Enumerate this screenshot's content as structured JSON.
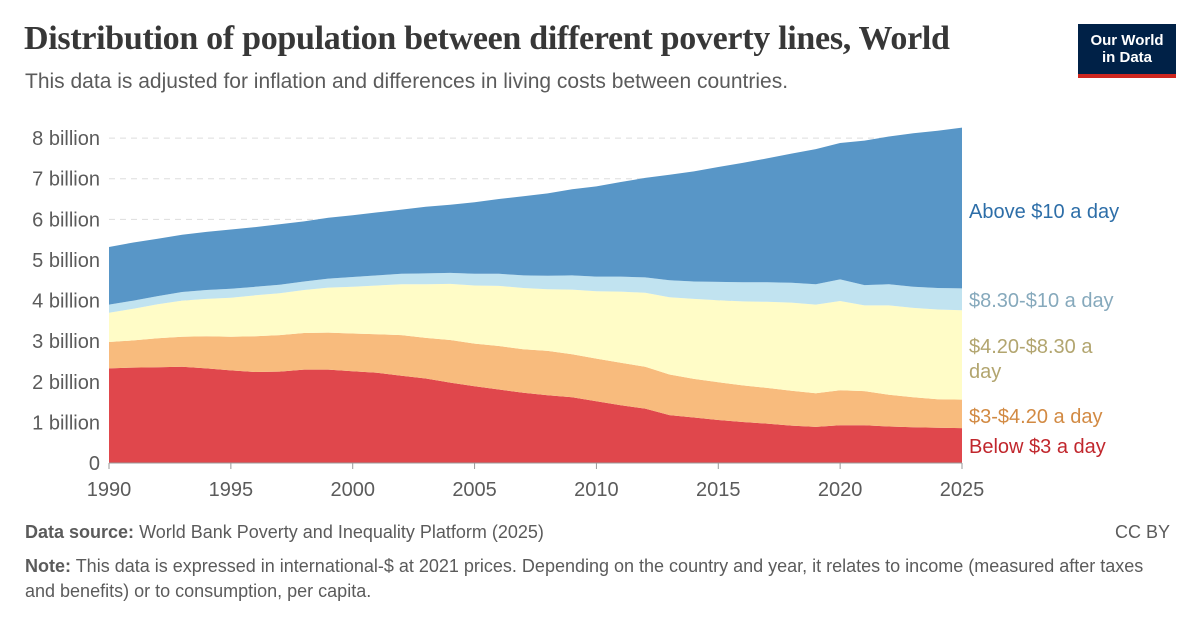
{
  "header": {
    "title": "Distribution of population between different poverty lines, World",
    "subtitle": "This data is adjusted for inflation and differences in living costs between countries."
  },
  "logo": {
    "line1": "Our World",
    "line2": "in Data"
  },
  "footer": {
    "source_label": "Data source:",
    "source_text": "World Bank Poverty and Inequality Platform (2025)",
    "license": "CC BY",
    "note_label": "Note:",
    "note_text": "This data is expressed in international-$ at 2021 prices. Depending on the country and year, it relates to income (measured after taxes and benefits) or to consumption, per capita."
  },
  "chart_data": {
    "type": "area",
    "stacked": true,
    "x": [
      1990,
      1991,
      1992,
      1993,
      1994,
      1995,
      1996,
      1997,
      1998,
      1999,
      2000,
      2001,
      2002,
      2003,
      2004,
      2005,
      2006,
      2007,
      2008,
      2009,
      2010,
      2011,
      2012,
      2013,
      2014,
      2015,
      2016,
      2017,
      2018,
      2019,
      2020,
      2021,
      2022,
      2023,
      2024,
      2025
    ],
    "xlim": [
      1990,
      2025
    ],
    "x_ticks": [
      "1990",
      "1995",
      "2000",
      "2005",
      "2010",
      "2015",
      "2020",
      "2025"
    ],
    "x_tick_values": [
      1990,
      1995,
      2000,
      2005,
      2010,
      2015,
      2020,
      2025
    ],
    "ylim": [
      0,
      8.2
    ],
    "y_ticks": [
      "0",
      "1 billion",
      "2 billion",
      "3 billion",
      "4 billion",
      "5 billion",
      "6 billion",
      "7 billion",
      "8 billion"
    ],
    "y_tick_values": [
      0,
      1,
      2,
      3,
      4,
      5,
      6,
      7,
      8
    ],
    "grid": "horizontal dashed",
    "legend": "inline-right",
    "series": [
      {
        "name": "Below $3 a day",
        "color": "#e0474c",
        "values": [
          2.33,
          2.35,
          2.36,
          2.37,
          2.33,
          2.28,
          2.24,
          2.25,
          2.3,
          2.3,
          2.26,
          2.22,
          2.15,
          2.08,
          1.98,
          1.89,
          1.81,
          1.73,
          1.67,
          1.62,
          1.52,
          1.42,
          1.34,
          1.18,
          1.12,
          1.06,
          1.01,
          0.97,
          0.92,
          0.89,
          0.93,
          0.93,
          0.9,
          0.88,
          0.87,
          0.86
        ]
      },
      {
        "name": "$3-$4.20 a day",
        "color": "#f8bb7d",
        "values": [
          0.65,
          0.67,
          0.71,
          0.74,
          0.79,
          0.83,
          0.88,
          0.9,
          0.9,
          0.91,
          0.93,
          0.95,
          1.0,
          1.0,
          1.05,
          1.05,
          1.07,
          1.07,
          1.09,
          1.06,
          1.05,
          1.05,
          1.03,
          1.0,
          0.95,
          0.93,
          0.9,
          0.88,
          0.86,
          0.83,
          0.86,
          0.84,
          0.78,
          0.74,
          0.7,
          0.7
        ]
      },
      {
        "name": "$4.20-$8.30 a day",
        "color": "#fffcc7",
        "values": [
          0.72,
          0.78,
          0.84,
          0.89,
          0.92,
          0.96,
          1.01,
          1.03,
          1.06,
          1.11,
          1.15,
          1.2,
          1.25,
          1.32,
          1.38,
          1.43,
          1.48,
          1.51,
          1.52,
          1.59,
          1.66,
          1.75,
          1.82,
          1.9,
          1.97,
          2.02,
          2.07,
          2.12,
          2.17,
          2.18,
          2.2,
          2.11,
          2.2,
          2.2,
          2.21,
          2.2
        ]
      },
      {
        "name": "$8.30-$10 a day",
        "color": "#c1e3f0",
        "values": [
          0.2,
          0.2,
          0.2,
          0.21,
          0.22,
          0.22,
          0.21,
          0.21,
          0.21,
          0.22,
          0.24,
          0.25,
          0.26,
          0.27,
          0.27,
          0.29,
          0.3,
          0.31,
          0.33,
          0.35,
          0.36,
          0.37,
          0.38,
          0.42,
          0.43,
          0.45,
          0.47,
          0.48,
          0.49,
          0.5,
          0.53,
          0.5,
          0.52,
          0.52,
          0.53,
          0.54
        ]
      },
      {
        "name": "Above $10 a day",
        "color": "#5896c7",
        "values": [
          1.42,
          1.43,
          1.41,
          1.41,
          1.43,
          1.46,
          1.47,
          1.49,
          1.48,
          1.5,
          1.52,
          1.55,
          1.58,
          1.64,
          1.68,
          1.76,
          1.84,
          1.95,
          2.03,
          2.12,
          2.22,
          2.33,
          2.45,
          2.6,
          2.71,
          2.83,
          2.94,
          3.05,
          3.18,
          3.33,
          3.36,
          3.56,
          3.64,
          3.78,
          3.87,
          3.96
        ]
      }
    ]
  }
}
